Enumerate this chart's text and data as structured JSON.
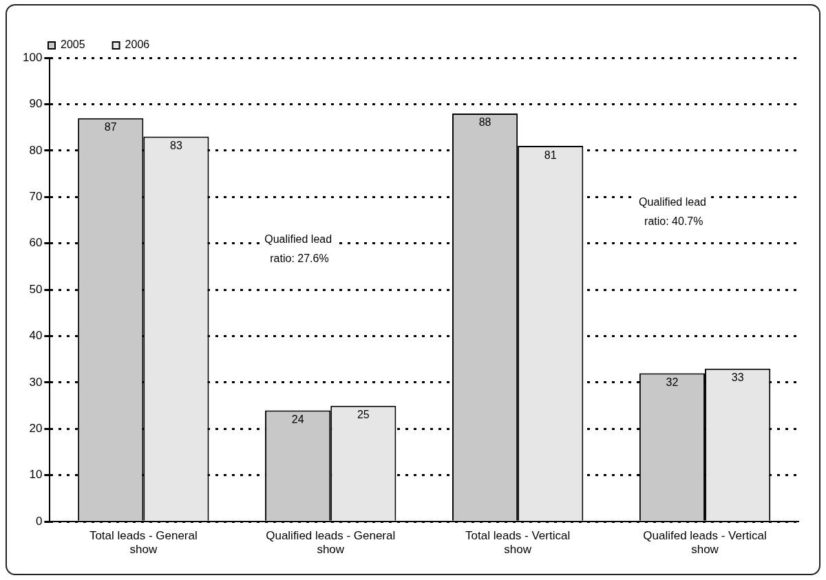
{
  "chart_data": {
    "type": "bar",
    "categories": [
      "Total leads - General show",
      "Qualified leads - General show",
      "Total leads - Vertical show",
      "Qualifed leads - Vertical show"
    ],
    "series": [
      {
        "name": "2005",
        "color": "#c8c8c8",
        "values": [
          87,
          24,
          88,
          32
        ]
      },
      {
        "name": "2006",
        "color": "#e6e6e6",
        "values": [
          83,
          25,
          81,
          33
        ]
      }
    ],
    "ylim": [
      0,
      100
    ],
    "yticks": [
      0,
      10,
      20,
      30,
      40,
      50,
      60,
      70,
      80,
      90,
      100
    ],
    "grid": "y",
    "legend": "top left",
    "data_labels": true,
    "annotations": [
      "Qualified lead ratio: 27.6%",
      "Qualified lead ratio: 40.7%"
    ]
  }
}
